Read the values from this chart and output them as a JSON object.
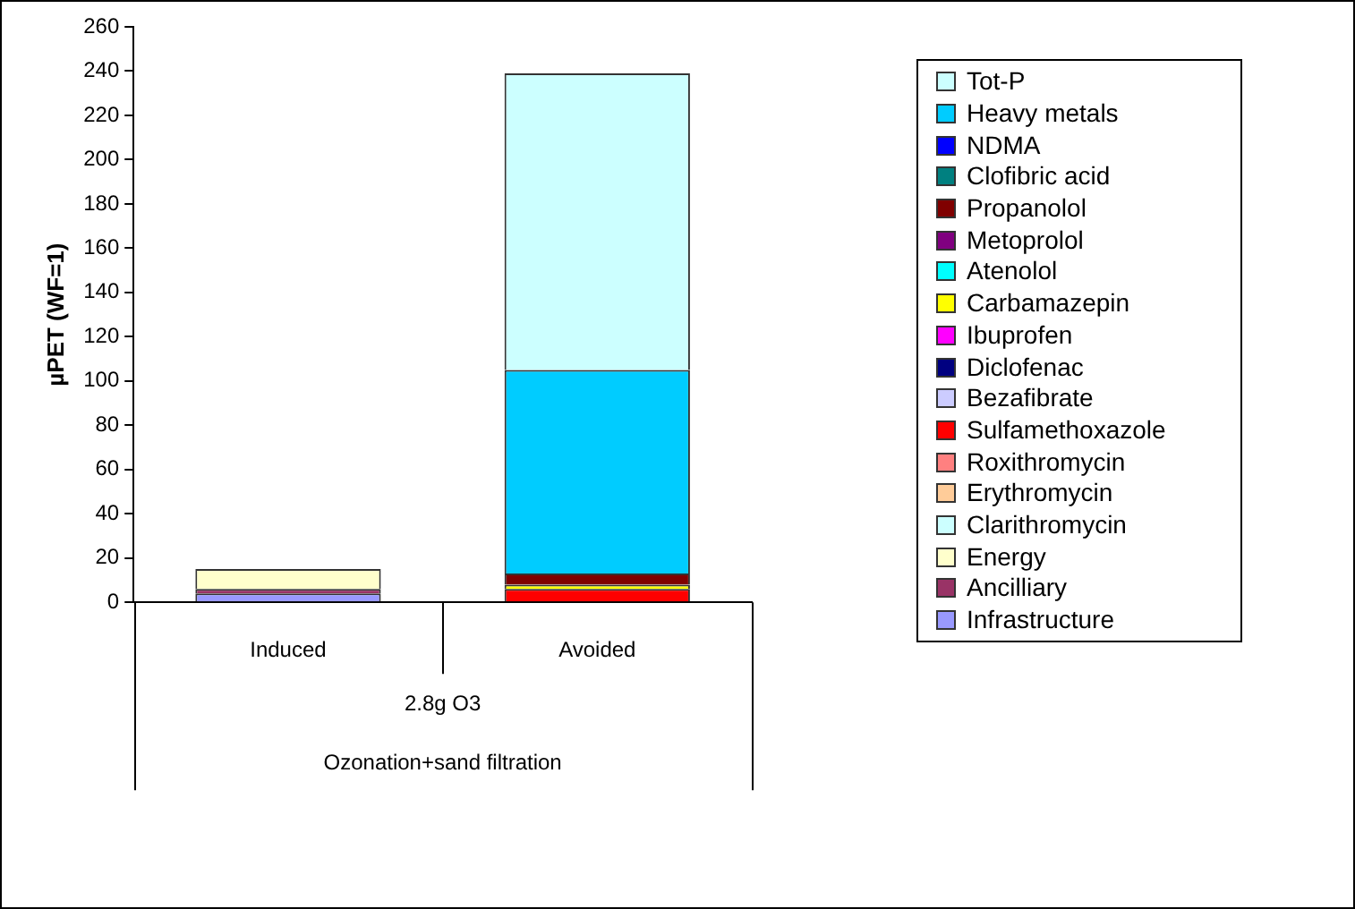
{
  "chart_data": {
    "type": "bar",
    "stacked": true,
    "ylabel": "µPET (WF=1)",
    "categories": [
      "Induced",
      "Avoided"
    ],
    "annotations": [
      "2.8g O3",
      "Ozonation+sand filtration"
    ],
    "ylim": [
      0,
      260
    ],
    "yticks": [
      0,
      20,
      40,
      60,
      80,
      100,
      120,
      140,
      160,
      180,
      200,
      220,
      240,
      260
    ],
    "grid": false,
    "legend": "right",
    "series": [
      {
        "name": "Infrastructure",
        "color": "#9999ff",
        "values": [
          4,
          0
        ]
      },
      {
        "name": "Ancilliary",
        "color": "#993366",
        "values": [
          2,
          0
        ]
      },
      {
        "name": "Energy",
        "color": "#ffffcc",
        "values": [
          9,
          0
        ]
      },
      {
        "name": "Clarithromycin",
        "color": "#ccffff",
        "values": [
          0,
          0
        ]
      },
      {
        "name": "Erythromycin",
        "color": "#ffcc99",
        "values": [
          0,
          0
        ]
      },
      {
        "name": "Roxithromycin",
        "color": "#ff8080",
        "values": [
          0,
          0
        ]
      },
      {
        "name": "Sulfamethoxazole",
        "color": "#ff0000",
        "values": [
          0,
          6
        ]
      },
      {
        "name": "Bezafibrate",
        "color": "#ccccff",
        "values": [
          0,
          0
        ]
      },
      {
        "name": "Diclofenac",
        "color": "#000080",
        "values": [
          0,
          0
        ]
      },
      {
        "name": "Ibuprofen",
        "color": "#ff00ff",
        "values": [
          0,
          0
        ]
      },
      {
        "name": "Carbamazepin",
        "color": "#ffff00",
        "values": [
          0,
          2
        ]
      },
      {
        "name": "Atenolol",
        "color": "#00ffff",
        "values": [
          0,
          0
        ]
      },
      {
        "name": "Metoprolol",
        "color": "#800080",
        "values": [
          0,
          0
        ]
      },
      {
        "name": "Propanolol",
        "color": "#800000",
        "values": [
          0,
          5
        ]
      },
      {
        "name": "Clofibric acid",
        "color": "#008080",
        "values": [
          0,
          0
        ]
      },
      {
        "name": "NDMA",
        "color": "#0000ff",
        "values": [
          0,
          0
        ]
      },
      {
        "name": "Heavy metals",
        "color": "#00ccff",
        "values": [
          0,
          92
        ]
      },
      {
        "name": "Tot-P",
        "color": "#ccffff",
        "values": [
          0,
          134
        ]
      }
    ]
  }
}
